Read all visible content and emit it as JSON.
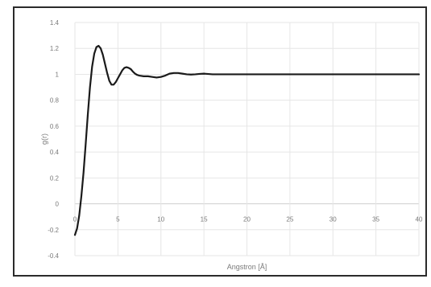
{
  "chart_data": {
    "type": "line",
    "title": "",
    "xlabel": "Angstron [Å]",
    "ylabel": "g(r)",
    "xlim": [
      0,
      40
    ],
    "ylim": [
      -0.4,
      1.4
    ],
    "x_ticks": [
      0,
      5,
      10,
      15,
      20,
      25,
      30,
      35,
      40
    ],
    "y_ticks": [
      -0.4,
      -0.2,
      0,
      0.2,
      0.4,
      0.6,
      0.8,
      1,
      1.2,
      1.4
    ],
    "x_tick_labels": [
      "0",
      "5",
      "10",
      "15",
      "20",
      "25",
      "30",
      "35",
      "40"
    ],
    "y_tick_labels": [
      "-0.4",
      "-0.2",
      "0",
      "0.2",
      "0.4",
      "0.6",
      "0.8",
      "1",
      "1.2",
      "1.4"
    ],
    "grid": true,
    "legend": "none",
    "series": [
      {
        "color": "#1a1a1a",
        "x": [
          0,
          0.25,
          0.5,
          0.75,
          1.0,
          1.25,
          1.5,
          1.75,
          2.0,
          2.25,
          2.5,
          2.75,
          3.0,
          3.25,
          3.5,
          3.75,
          4.0,
          4.25,
          4.5,
          4.75,
          5.0,
          5.25,
          5.5,
          5.75,
          6.0,
          6.25,
          6.5,
          6.75,
          7.0,
          7.25,
          7.5,
          8.0,
          8.5,
          9.0,
          9.5,
          10.0,
          10.5,
          11.0,
          11.5,
          12.0,
          12.5,
          13.0,
          13.5,
          14.0,
          14.5,
          15.0,
          16,
          17,
          18,
          19,
          20,
          22,
          24,
          26,
          28,
          30,
          32,
          34,
          36,
          38,
          40
        ],
        "y": [
          -0.24,
          -0.19,
          -0.09,
          0.06,
          0.24,
          0.46,
          0.69,
          0.9,
          1.06,
          1.16,
          1.21,
          1.22,
          1.2,
          1.15,
          1.08,
          1.01,
          0.95,
          0.92,
          0.92,
          0.94,
          0.97,
          1.0,
          1.03,
          1.05,
          1.055,
          1.05,
          1.04,
          1.02,
          1.005,
          0.995,
          0.99,
          0.985,
          0.985,
          0.98,
          0.975,
          0.98,
          0.99,
          1.005,
          1.01,
          1.01,
          1.005,
          1.0,
          0.998,
          1.0,
          1.003,
          1.005,
          1.0,
          1.0,
          1.0,
          1.0,
          1.0,
          1.0,
          1.0,
          1.0,
          1.0,
          1.0,
          1.0,
          1.0,
          1.0,
          1.0,
          1.0
        ]
      }
    ]
  }
}
